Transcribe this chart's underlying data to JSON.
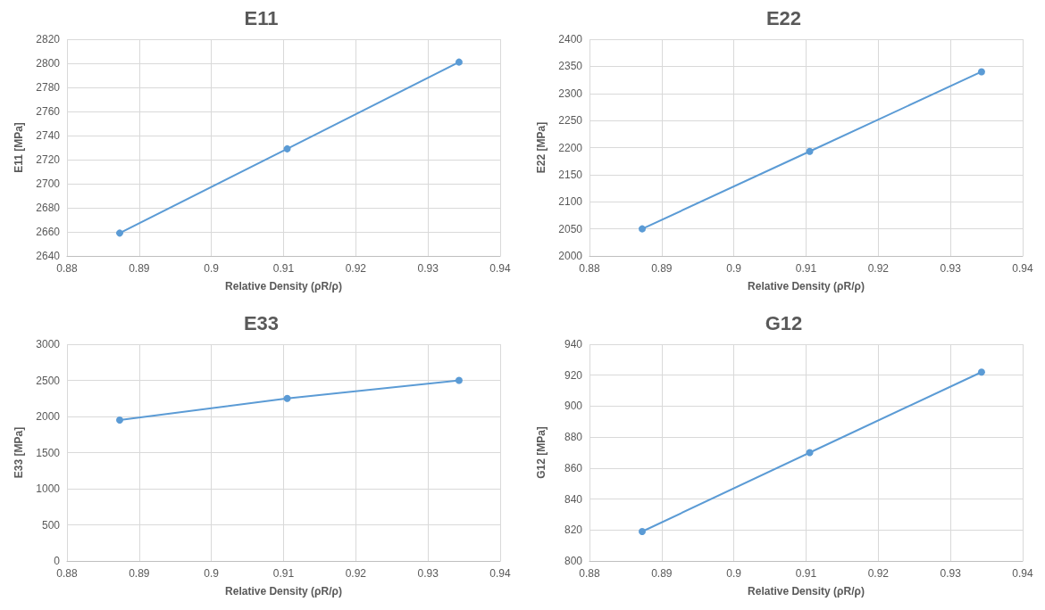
{
  "chart_data": [
    {
      "type": "line",
      "title": "E11",
      "xlabel": "Relative Density (ρR/ρ)",
      "ylabel": "E11 [MPa]",
      "x": [
        0.8873,
        0.9105,
        0.9343
      ],
      "series": [
        {
          "color": "#5b9bd5",
          "values": [
            2659,
            2729,
            2801
          ]
        }
      ],
      "xlim": [
        0.88,
        0.94
      ],
      "xticks": [
        0.88,
        0.89,
        0.9,
        0.91,
        0.92,
        0.93,
        0.94
      ],
      "ylim": [
        2640,
        2820
      ],
      "yticks": [
        2640,
        2660,
        2680,
        2700,
        2720,
        2740,
        2760,
        2780,
        2800,
        2820
      ],
      "grid": true,
      "marker": "circle",
      "line_style": "solid"
    },
    {
      "type": "line",
      "title": "E22",
      "xlabel": "Relative Density (ρR/ρ)",
      "ylabel": "E22 [MPa]",
      "x": [
        0.8873,
        0.9105,
        0.9343
      ],
      "series": [
        {
          "color": "#5b9bd5",
          "values": [
            2050,
            2193,
            2340
          ]
        }
      ],
      "xlim": [
        0.88,
        0.94
      ],
      "xticks": [
        0.88,
        0.89,
        0.9,
        0.91,
        0.92,
        0.93,
        0.94
      ],
      "ylim": [
        2000,
        2400
      ],
      "yticks": [
        2000,
        2050,
        2100,
        2150,
        2200,
        2250,
        2300,
        2350,
        2400
      ],
      "grid": true,
      "marker": "circle",
      "line_style": "solid"
    },
    {
      "type": "line",
      "title": "E33",
      "xlabel": "Relative Density (ρR/ρ)",
      "ylabel": "E33 [MPa]",
      "x": [
        0.8873,
        0.9105,
        0.9343
      ],
      "series": [
        {
          "color": "#5b9bd5",
          "values": [
            1950,
            2250,
            2500
          ]
        }
      ],
      "xlim": [
        0.88,
        0.94
      ],
      "xticks": [
        0.88,
        0.89,
        0.9,
        0.91,
        0.92,
        0.93,
        0.94
      ],
      "ylim": [
        0,
        3000
      ],
      "yticks": [
        0,
        500,
        1000,
        1500,
        2000,
        2500,
        3000
      ],
      "grid": true,
      "marker": "circle",
      "line_style": "solid"
    },
    {
      "type": "line",
      "title": "G12",
      "xlabel": "Relative Density (ρR/ρ)",
      "ylabel": "G12 [MPa]",
      "x": [
        0.8873,
        0.9105,
        0.9343
      ],
      "series": [
        {
          "color": "#5b9bd5",
          "values": [
            819,
            870,
            922
          ]
        }
      ],
      "xlim": [
        0.88,
        0.94
      ],
      "xticks": [
        0.88,
        0.89,
        0.9,
        0.91,
        0.92,
        0.93,
        0.94
      ],
      "ylim": [
        800,
        940
      ],
      "yticks": [
        800,
        820,
        840,
        860,
        880,
        900,
        920,
        940
      ],
      "grid": true,
      "marker": "circle",
      "line_style": "solid"
    }
  ]
}
